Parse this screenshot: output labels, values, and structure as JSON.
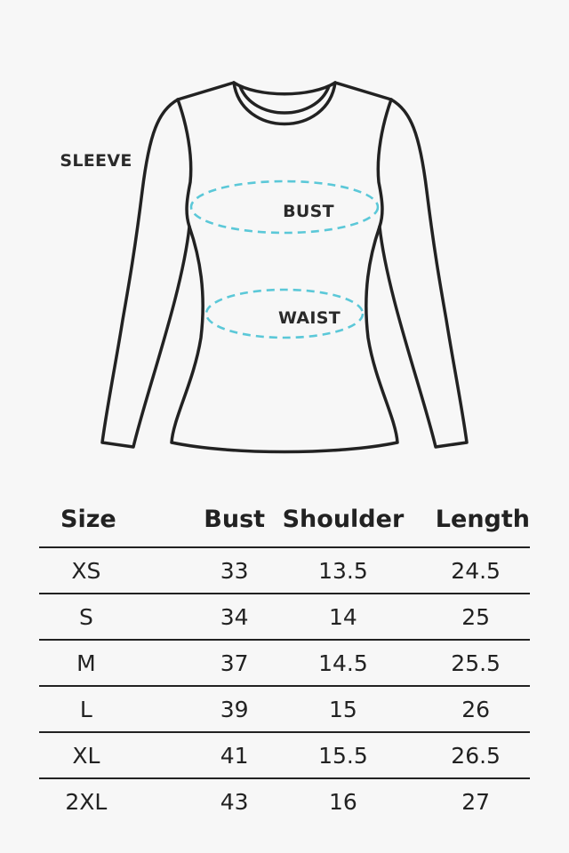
{
  "diagram": {
    "labels": {
      "sleeve": "SLEEVE",
      "bust": "BUST",
      "waist": "WAIST"
    },
    "outline_color": "#222222",
    "measure_color": "#5bc8d8"
  },
  "table": {
    "headers": [
      "Size",
      "Bust",
      "Shoulder",
      "Length"
    ],
    "rows": [
      [
        "XS",
        "33",
        "13.5",
        "24.5"
      ],
      [
        "S",
        "34",
        "14",
        "25"
      ],
      [
        "M",
        "37",
        "14.5",
        "25.5"
      ],
      [
        "L",
        "39",
        "15",
        "26"
      ],
      [
        "XL",
        "41",
        "15.5",
        "26.5"
      ],
      [
        "2XL",
        "43",
        "16",
        "27"
      ]
    ]
  }
}
